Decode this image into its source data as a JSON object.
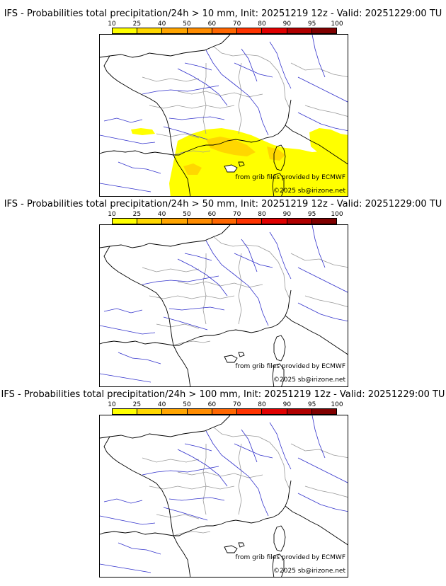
{
  "panels": [
    {
      "title": "IFS - Probabilities total precipitation/24h > 10 mm, Init: 20251219 12z - Valid: 20251229:00 TU",
      "has_precip": true
    },
    {
      "title": "IFS - Probabilities total precipitation/24h > 50 mm, Init: 20251219 12z - Valid: 20251229:00 TU",
      "has_precip": false
    },
    {
      "title": "IFS - Probabilities total precipitation/24h > 100 mm, Init: 20251219 12z - Valid: 20251229:00 TU",
      "has_precip": false
    }
  ],
  "colorbar": {
    "ticks": [
      "10",
      "25",
      "40",
      "50",
      "60",
      "70",
      "80",
      "90",
      "95",
      "100"
    ],
    "colors": [
      "#ffff00",
      "#ffd700",
      "#ffa500",
      "#ff8c00",
      "#ff6600",
      "#ff3300",
      "#e00000",
      "#b00000",
      "#800000"
    ]
  },
  "credits": {
    "source": "from grib files provided by ECMWF",
    "copyright": "©2025 sb@irizone.net"
  },
  "map_colors": {
    "coast": "#000000",
    "rivers": "#3333cc",
    "borders": "#999999",
    "precip_light": "#ffff00",
    "precip_mid": "#ffd700"
  }
}
